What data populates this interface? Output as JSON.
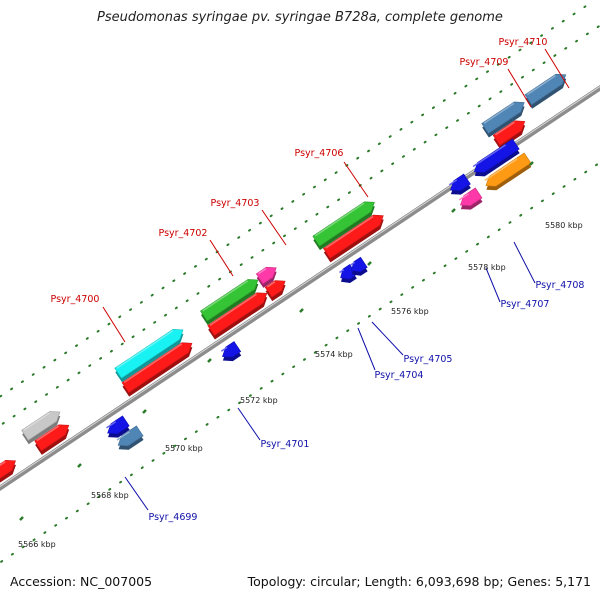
{
  "title": "Pseudomonas syringae pv. syringae B728a, complete genome",
  "footer": {
    "accession": "Accession: NC_007005",
    "summary": "Topology: circular; Length: 6,093,698 bp; Genes: 5,171"
  },
  "colors": {
    "forward_label": "#cc0000",
    "reverse_label": "#1010aa",
    "backbone": "#8c8c8c",
    "tick": "#2a7a2a",
    "red": "#ff1a1a",
    "cyan": "#19f2f2",
    "green": "#35c435",
    "magenta": "#ff3aa8",
    "blue": "#1414e6",
    "steelblue": "#4f86b6",
    "orange": "#ff9a14",
    "gray": "#c8c8c8"
  },
  "scale_ticks": [
    "5566 kbp",
    "5568 kbp",
    "5570 kbp",
    "5572 kbp",
    "5574 kbp",
    "5576 kbp",
    "5578 kbp",
    "5580 kbp"
  ],
  "forward_genes": [
    {
      "name": "Psyr_4700",
      "color": "cyan"
    },
    {
      "name": "Psyr_4702",
      "color": "green"
    },
    {
      "name": "Psyr_4703",
      "color": "magenta"
    },
    {
      "name": "Psyr_4706",
      "color": "green"
    },
    {
      "name": "Psyr_4709",
      "color": "steelblue"
    },
    {
      "name": "Psyr_4710",
      "color": "steelblue"
    }
  ],
  "reverse_genes": [
    {
      "name": "Psyr_4699",
      "color": "steelblue"
    },
    {
      "name": "Psyr_4701",
      "color": "blue"
    },
    {
      "name": "Psyr_4704",
      "color": "blue"
    },
    {
      "name": "Psyr_4705",
      "color": "blue"
    },
    {
      "name": "Psyr_4707",
      "color": "magenta"
    },
    {
      "name": "Psyr_4708",
      "color": "orange"
    }
  ]
}
